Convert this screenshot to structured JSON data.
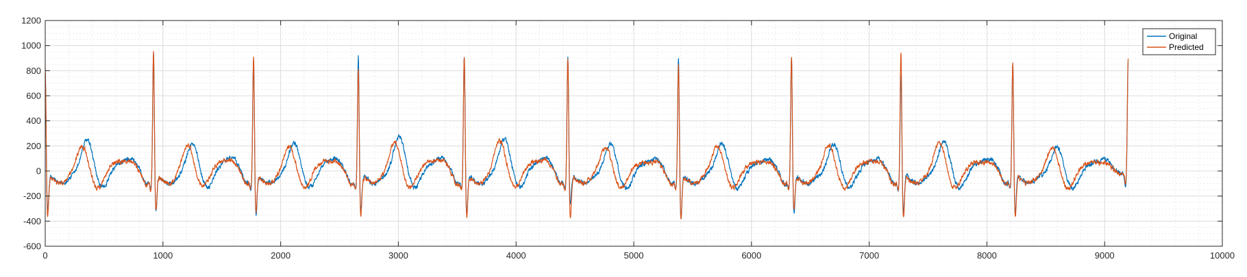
{
  "chart_data": {
    "type": "line",
    "title": "",
    "xlabel": "",
    "ylabel": "",
    "xlim": [
      0,
      10000
    ],
    "ylim": [
      -600,
      1200
    ],
    "x_ticks": [
      0,
      1000,
      2000,
      3000,
      4000,
      5000,
      6000,
      7000,
      8000,
      9000,
      10000
    ],
    "x_tick_labels": [
      "0",
      "1000",
      "2000",
      "3000",
      "4000",
      "5000",
      "6000",
      "7000",
      "8000",
      "9000",
      "10000"
    ],
    "y_ticks": [
      -600,
      -400,
      -200,
      0,
      200,
      400,
      600,
      800,
      1000,
      1200
    ],
    "y_tick_labels": [
      "-600",
      "-400",
      "-200",
      "0",
      "200",
      "400",
      "600",
      "800",
      "1000",
      "1200"
    ],
    "grid": true,
    "minor_grid": true,
    "legend_position": "top-right",
    "series": [
      {
        "name": "Original",
        "color": "#0072BD",
        "r_peaks": [
          0,
          920,
          1770,
          2660,
          3560,
          4440,
          5380,
          6340,
          7270,
          8220,
          9200
        ],
        "r_peak_values": [
          820,
          960,
          950,
          950,
          960,
          940,
          950,
          960,
          800,
          900,
          870
        ],
        "s_trough_values": [
          -330,
          -330,
          -360,
          -320,
          -340,
          -290,
          -390,
          -350,
          -350,
          -360,
          -180
        ],
        "t_wave_values": [
          250,
          220,
          230,
          280,
          260,
          220,
          220,
          220,
          240,
          200,
          220
        ],
        "baseline": -20
      },
      {
        "name": "Predicted",
        "color": "#D95319",
        "r_peaks": [
          0,
          920,
          1770,
          2660,
          3560,
          4440,
          5380,
          6340,
          7270,
          8220,
          9200
        ],
        "r_peak_values": [
          880,
          990,
          950,
          870,
          960,
          950,
          900,
          960,
          1000,
          910,
          900
        ],
        "s_trough_values": [
          -380,
          -310,
          -340,
          -370,
          -360,
          -390,
          -390,
          -320,
          -390,
          -390,
          -150
        ],
        "t_wave_values": [
          200,
          210,
          200,
          230,
          250,
          190,
          200,
          210,
          230,
          190,
          240
        ],
        "baseline": -20
      }
    ]
  }
}
